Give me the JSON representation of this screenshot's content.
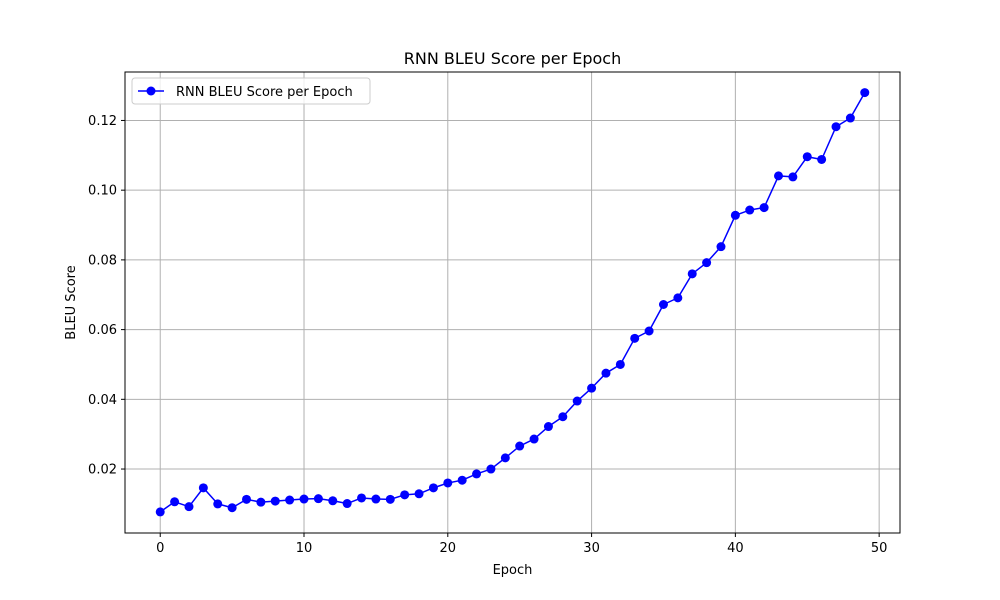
{
  "chart_data": {
    "type": "line",
    "title": "RNN BLEU Score per Epoch",
    "xlabel": "Epoch",
    "ylabel": "BLEU Score",
    "xlim": [
      -2.45,
      51.45
    ],
    "ylim": [
      0.00165,
      0.1339
    ],
    "xticks": [
      0,
      10,
      20,
      30,
      40,
      50
    ],
    "yticks": [
      0.02,
      0.04,
      0.06,
      0.08,
      0.1,
      0.12
    ],
    "ytick_labels": [
      "0.02",
      "0.04",
      "0.06",
      "0.08",
      "0.10",
      "0.12"
    ],
    "grid": true,
    "legend_position": "top-left",
    "series": [
      {
        "name": "RNN BLEU Score per Epoch",
        "color": "#0000ff",
        "marker": "circle",
        "x": [
          0,
          1,
          2,
          3,
          4,
          5,
          6,
          7,
          8,
          9,
          10,
          11,
          12,
          13,
          14,
          15,
          16,
          17,
          18,
          19,
          20,
          21,
          22,
          23,
          24,
          25,
          26,
          27,
          28,
          29,
          30,
          31,
          32,
          33,
          34,
          35,
          36,
          37,
          38,
          39,
          40,
          41,
          42,
          43,
          44,
          45,
          46,
          47,
          48,
          49
        ],
        "y": [
          0.0077,
          0.0106,
          0.0092,
          0.0146,
          0.01,
          0.0089,
          0.0113,
          0.0105,
          0.0108,
          0.0111,
          0.0114,
          0.0115,
          0.0109,
          0.0101,
          0.0117,
          0.0114,
          0.0113,
          0.0126,
          0.0129,
          0.0146,
          0.016,
          0.0168,
          0.0186,
          0.02,
          0.0232,
          0.0266,
          0.0286,
          0.0322,
          0.035,
          0.0395,
          0.0432,
          0.0475,
          0.05,
          0.0575,
          0.0596,
          0.0672,
          0.0691,
          0.076,
          0.0792,
          0.0838,
          0.0928,
          0.0943,
          0.095,
          0.1041,
          0.1038,
          0.1096,
          0.1088,
          0.1182,
          0.1207,
          0.128
        ]
      }
    ]
  }
}
